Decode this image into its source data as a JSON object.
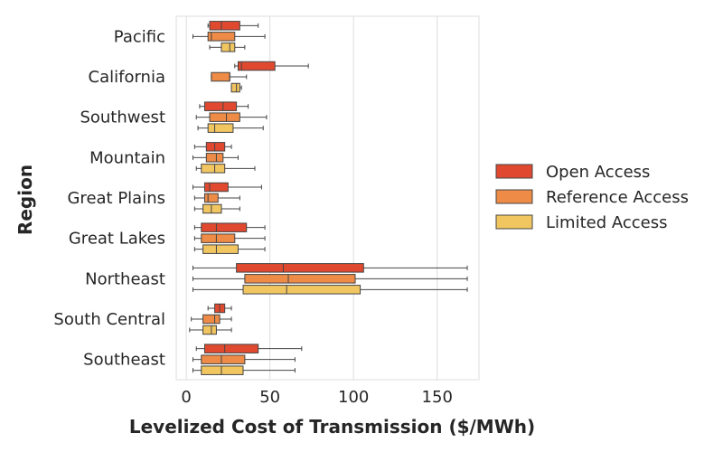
{
  "chart_data": {
    "type": "boxplot",
    "orientation": "horizontal",
    "title": "",
    "xlabel": "Levelized Cost of Transmission ($/MWh)",
    "ylabel": "Region",
    "xlim": [
      -6,
      175
    ],
    "xticks": [
      0,
      50,
      100,
      150
    ],
    "grid": "vertical",
    "legend_position": "right",
    "categories": [
      "Pacific",
      "California",
      "Southwest",
      "Mountain",
      "Great Plains",
      "Great Lakes",
      "Northeast",
      "South Central",
      "Southeast"
    ],
    "series": [
      {
        "name": "Open Access",
        "color": "#e0492f",
        "boxes": [
          {
            "whislo": 13,
            "q1": 14,
            "med": 21,
            "q3": 32,
            "whishi": 43
          },
          {
            "whislo": 29,
            "q1": 31,
            "med": 33,
            "q3": 53,
            "whishi": 73
          },
          {
            "whislo": 8,
            "q1": 11,
            "med": 22,
            "q3": 30,
            "whishi": 37
          },
          {
            "whislo": 5,
            "q1": 12,
            "med": 17,
            "q3": 23,
            "whishi": 27
          },
          {
            "whislo": 4,
            "q1": 11,
            "med": 14,
            "q3": 25,
            "whishi": 45
          },
          {
            "whislo": 5,
            "q1": 9,
            "med": 18,
            "q3": 36,
            "whishi": 47
          },
          {
            "whislo": 4,
            "q1": 30,
            "med": 58,
            "q3": 106,
            "whishi": 168
          },
          {
            "whislo": 13,
            "q1": 17,
            "med": 20,
            "q3": 23,
            "whishi": 27
          },
          {
            "whislo": 6,
            "q1": 11,
            "med": 23,
            "q3": 43,
            "whishi": 69
          }
        ]
      },
      {
        "name": "Reference Access",
        "color": "#ed8b47",
        "boxes": [
          {
            "whislo": 4,
            "q1": 13,
            "med": 15,
            "q3": 29,
            "whishi": 47
          },
          {
            "whislo": 15,
            "q1": 15,
            "med": 26,
            "q3": 26,
            "whishi": 36
          },
          {
            "whislo": 6,
            "q1": 14,
            "med": 24,
            "q3": 32,
            "whishi": 48
          },
          {
            "whislo": 4,
            "q1": 12,
            "med": 18,
            "q3": 22,
            "whishi": 31
          },
          {
            "whislo": 5,
            "q1": 11,
            "med": 13,
            "q3": 19,
            "whishi": 32
          },
          {
            "whislo": 5,
            "q1": 9,
            "med": 18,
            "q3": 29,
            "whishi": 47
          },
          {
            "whislo": 4,
            "q1": 35,
            "med": 61,
            "q3": 101,
            "whishi": 168
          },
          {
            "whislo": 3,
            "q1": 10,
            "med": 17,
            "q3": 20,
            "whishi": 27
          },
          {
            "whislo": 4,
            "q1": 9,
            "med": 21,
            "q3": 35,
            "whishi": 65
          }
        ]
      },
      {
        "name": "Limited Access",
        "color": "#f1c660",
        "boxes": [
          {
            "whislo": 14,
            "q1": 21,
            "med": 26,
            "q3": 29,
            "whishi": 35
          },
          {
            "whislo": 27,
            "q1": 27,
            "med": 30,
            "q3": 32,
            "whishi": 33
          },
          {
            "whislo": 7,
            "q1": 13,
            "med": 17,
            "q3": 28,
            "whishi": 46
          },
          {
            "whislo": 6,
            "q1": 9,
            "med": 17,
            "q3": 23,
            "whishi": 41
          },
          {
            "whislo": 5,
            "q1": 10,
            "med": 15,
            "q3": 21,
            "whishi": 32
          },
          {
            "whislo": 5,
            "q1": 10,
            "med": 18,
            "q3": 31,
            "whishi": 47
          },
          {
            "whislo": 4,
            "q1": 34,
            "med": 60,
            "q3": 104,
            "whishi": 168
          },
          {
            "whislo": 2,
            "q1": 10,
            "med": 15,
            "q3": 18,
            "whishi": 27
          },
          {
            "whislo": 4,
            "q1": 9,
            "med": 21,
            "q3": 34,
            "whishi": 65
          }
        ]
      }
    ]
  }
}
